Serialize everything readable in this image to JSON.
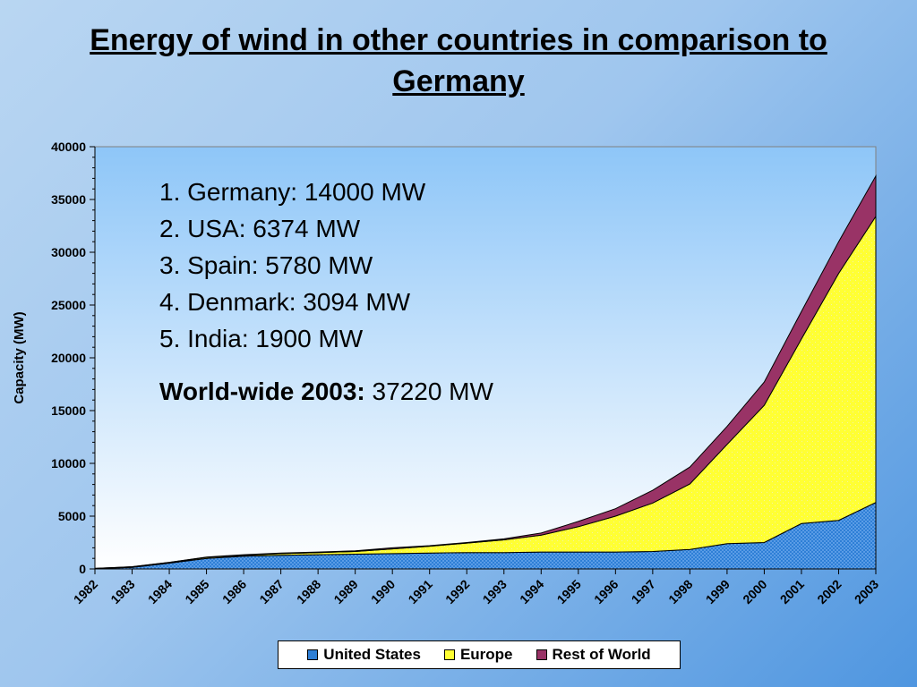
{
  "slide": {
    "title_line1": "Energy of wind in other countries in comparison to",
    "title_line2": "Germany"
  },
  "info": {
    "ranks": [
      "1. Germany:  14000 MW",
      "2. USA:  6374 MW",
      "3. Spain:  5780 MW",
      "4. Denmark:  3094 MW",
      "5. India:  1900 MW"
    ],
    "world_label": "World-wide 2003:",
    "world_value": " 37220 MW"
  },
  "chart_data": {
    "type": "area",
    "stacked": true,
    "ylabel": "Capacity (MW)",
    "xlabel": "",
    "ylim": [
      0,
      40000
    ],
    "yticks": [
      0,
      5000,
      10000,
      15000,
      20000,
      25000,
      30000,
      35000,
      40000
    ],
    "categories": [
      "1982",
      "1983",
      "1984",
      "1985",
      "1986",
      "1987",
      "1988",
      "1989",
      "1990",
      "1991",
      "1992",
      "1993",
      "1994",
      "1995",
      "1996",
      "1997",
      "1998",
      "1999",
      "2000",
      "2001",
      "2002",
      "2003"
    ],
    "series": [
      {
        "name": "United States",
        "color": "#2e7fd6",
        "values": [
          30,
          150,
          550,
          1000,
          1200,
          1300,
          1350,
          1400,
          1450,
          1500,
          1550,
          1550,
          1600,
          1600,
          1600,
          1650,
          1850,
          2400,
          2500,
          4300,
          4600,
          6300
        ]
      },
      {
        "name": "Europe",
        "color": "#ffff33",
        "values": [
          20,
          50,
          60,
          100,
          100,
          150,
          200,
          250,
          450,
          650,
          900,
          1200,
          1600,
          2400,
          3400,
          4600,
          6200,
          9400,
          13000,
          17500,
          23400,
          27100
        ]
      },
      {
        "name": "Rest of World",
        "color": "#993366",
        "values": [
          5,
          10,
          20,
          30,
          50,
          50,
          50,
          70,
          100,
          50,
          50,
          100,
          200,
          500,
          700,
          1200,
          1600,
          1700,
          2200,
          2600,
          3000,
          3820
        ]
      }
    ],
    "legend_position": "bottom"
  }
}
